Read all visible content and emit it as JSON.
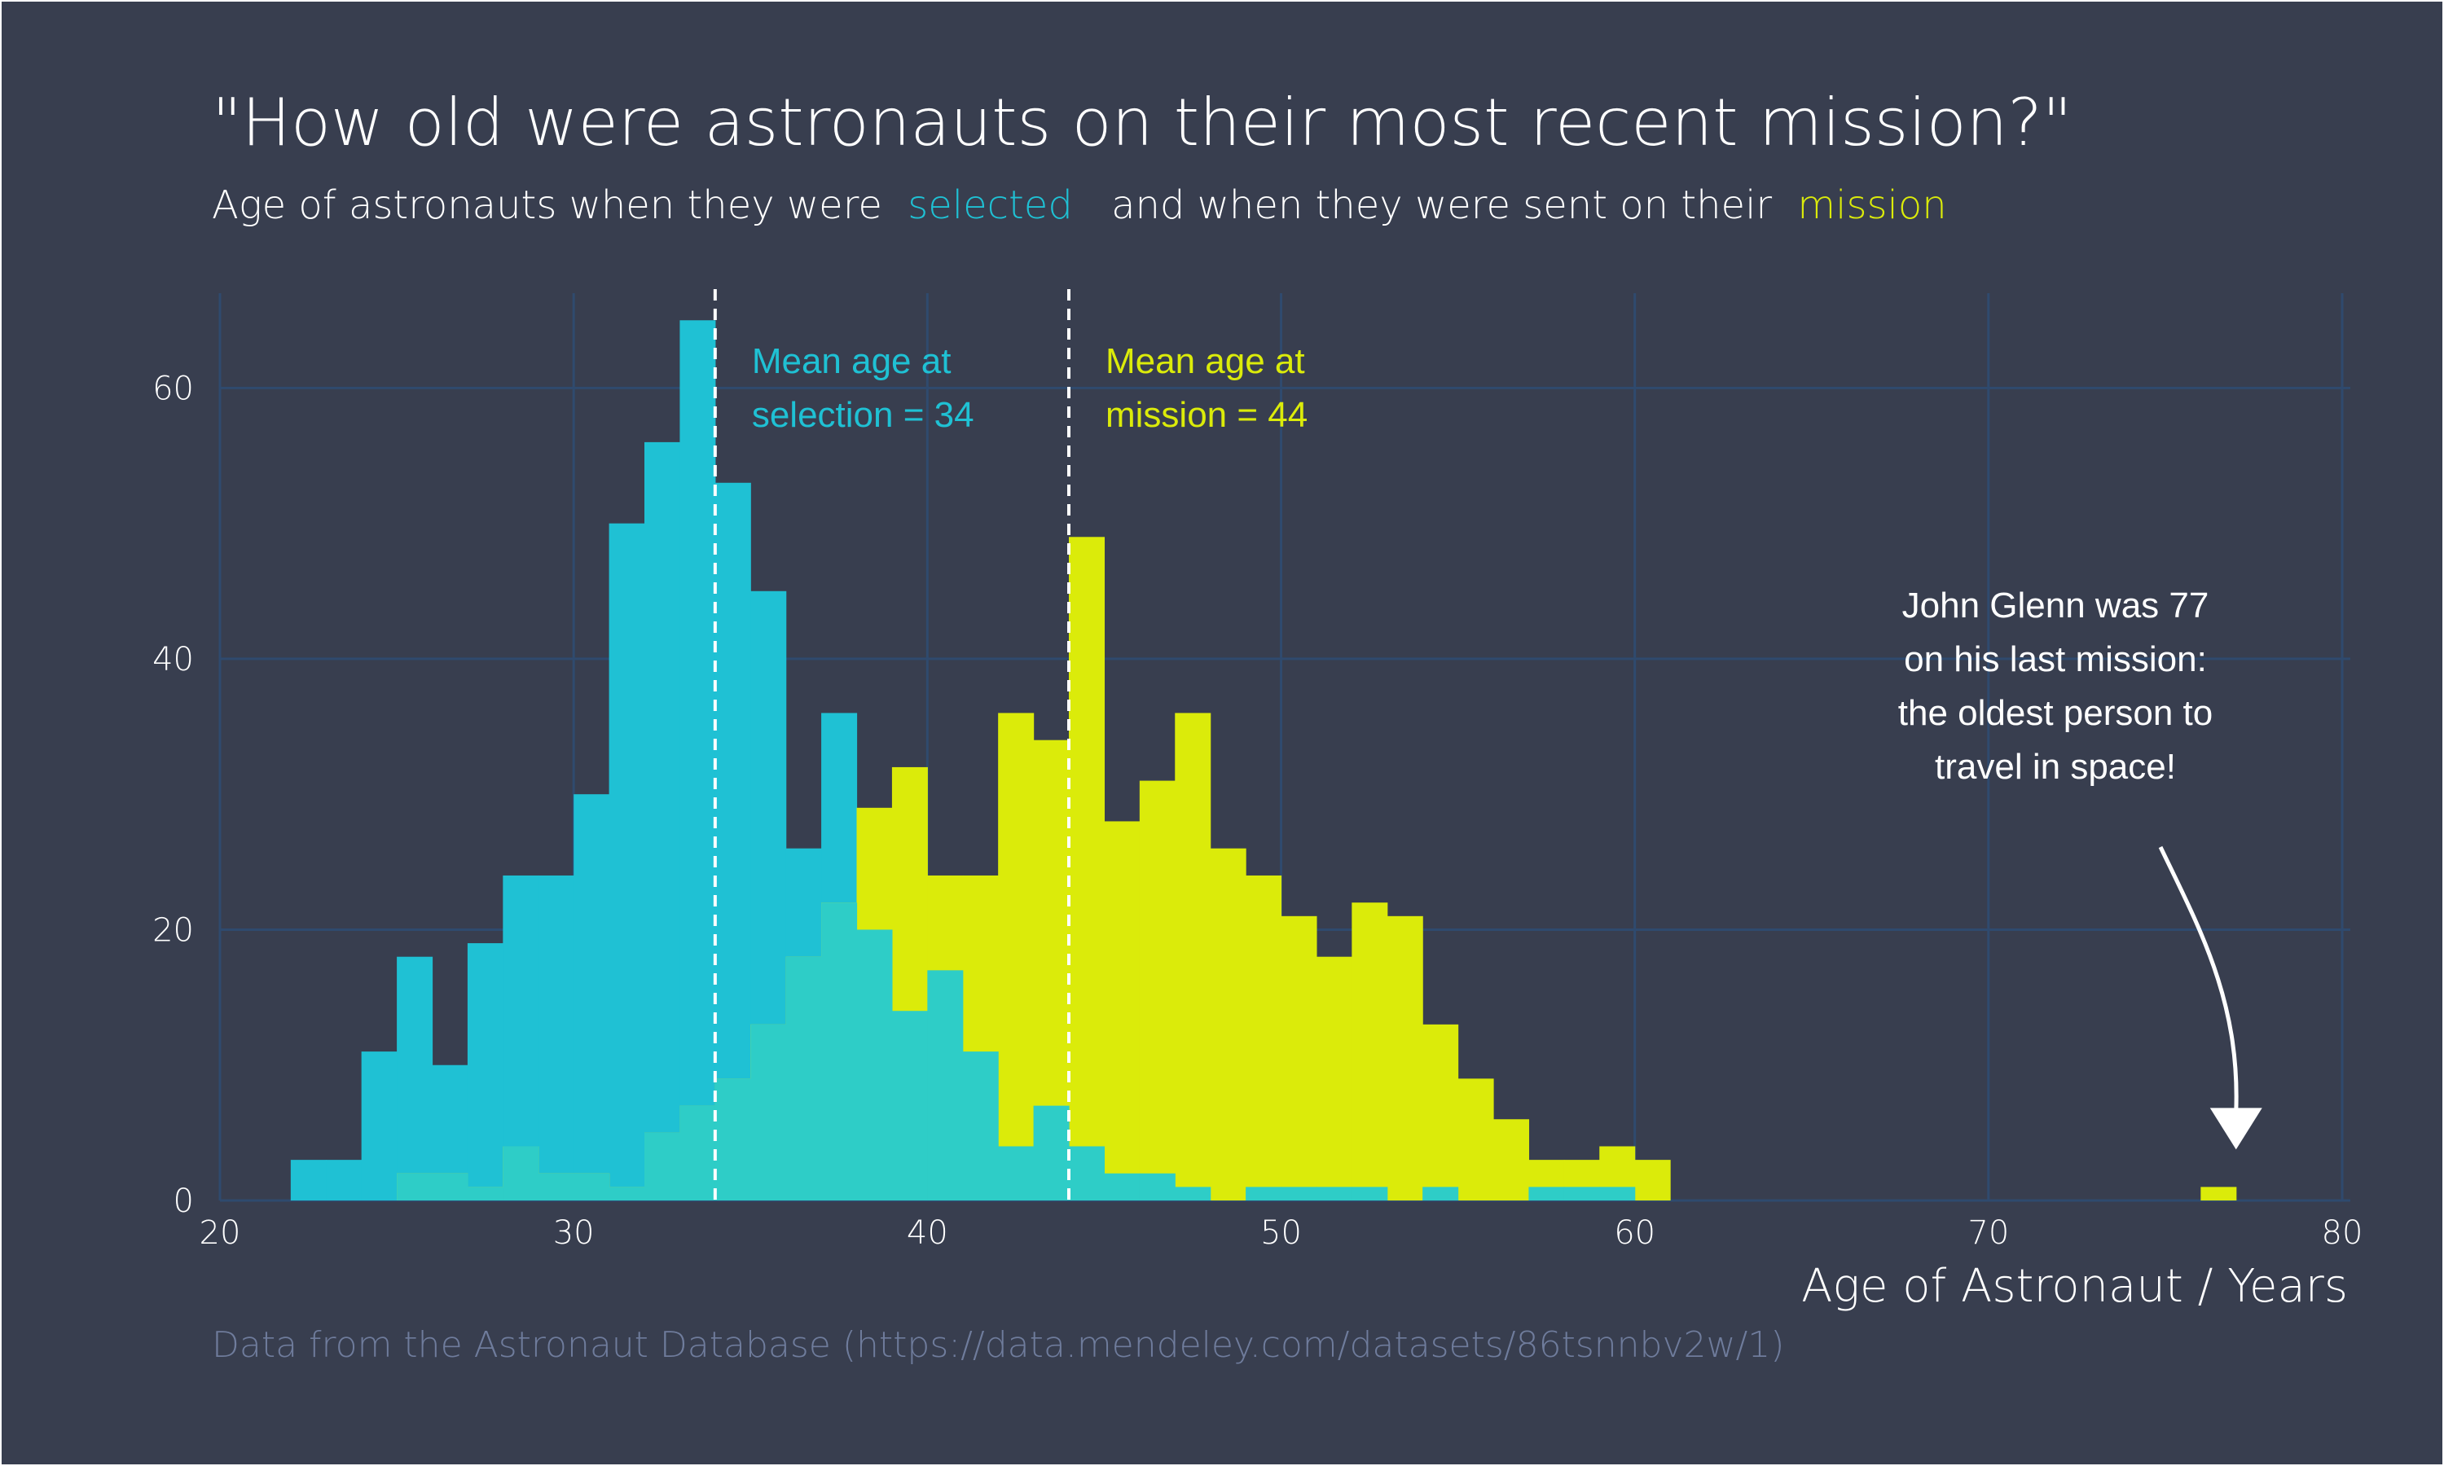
{
  "chart_data": {
    "type": "bar",
    "title": "\"How old were astronauts on their most recent mission?\"",
    "subtitle": {
      "part1": "Age of astronauts when they were",
      "highlight1": "selected",
      "part2": "and when they were sent on their",
      "highlight2": "mission"
    },
    "xlabel": "Age of Astronaut / Years",
    "ylabel": "",
    "xlim": [
      20,
      80
    ],
    "ylim": [
      0,
      67
    ],
    "x_ticks": [
      20,
      30,
      40,
      50,
      60,
      70,
      80
    ],
    "y_ticks": [
      0,
      20,
      40,
      60
    ],
    "grid": true,
    "bin_width": 1,
    "series": [
      {
        "name": "selected",
        "color": "#1fc1d4",
        "bins": [
          [
            22.5,
            3
          ],
          [
            23.5,
            3
          ],
          [
            24.5,
            11
          ],
          [
            25.5,
            18
          ],
          [
            26.5,
            10
          ],
          [
            27.5,
            19
          ],
          [
            28.5,
            24
          ],
          [
            29.5,
            24
          ],
          [
            30.5,
            30
          ],
          [
            31.5,
            50
          ],
          [
            32.5,
            56
          ],
          [
            33.5,
            65
          ],
          [
            34.5,
            53
          ],
          [
            35.5,
            45
          ],
          [
            36.5,
            26
          ],
          [
            37.5,
            36
          ],
          [
            38.5,
            20
          ],
          [
            39.5,
            14
          ],
          [
            40.5,
            17
          ],
          [
            41.5,
            11
          ],
          [
            42.5,
            4
          ],
          [
            43.5,
            7
          ],
          [
            44.5,
            4
          ],
          [
            45.5,
            2
          ],
          [
            46.5,
            2
          ],
          [
            47.5,
            1
          ],
          [
            49.5,
            1
          ],
          [
            50.5,
            1
          ],
          [
            51.5,
            1
          ],
          [
            52.5,
            1
          ],
          [
            54.5,
            1
          ],
          [
            57.5,
            1
          ],
          [
            58.5,
            1
          ],
          [
            59.5,
            1
          ]
        ]
      },
      {
        "name": "mission",
        "color": "#dbeb0a",
        "bins": [
          [
            25.5,
            2
          ],
          [
            26.5,
            2
          ],
          [
            27.5,
            1
          ],
          [
            28.5,
            4
          ],
          [
            29.5,
            2
          ],
          [
            30.5,
            2
          ],
          [
            31.5,
            1
          ],
          [
            32.5,
            5
          ],
          [
            33.5,
            7
          ],
          [
            34.5,
            9
          ],
          [
            35.5,
            13
          ],
          [
            36.5,
            18
          ],
          [
            37.5,
            22
          ],
          [
            38.5,
            29
          ],
          [
            39.5,
            32
          ],
          [
            40.5,
            24
          ],
          [
            41.5,
            24
          ],
          [
            42.5,
            36
          ],
          [
            43.5,
            34
          ],
          [
            44.5,
            49
          ],
          [
            45.5,
            28
          ],
          [
            46.5,
            31
          ],
          [
            47.5,
            36
          ],
          [
            48.5,
            26
          ],
          [
            49.5,
            24
          ],
          [
            50.5,
            21
          ],
          [
            51.5,
            18
          ],
          [
            52.5,
            22
          ],
          [
            53.5,
            21
          ],
          [
            54.5,
            13
          ],
          [
            55.5,
            9
          ],
          [
            56.5,
            6
          ],
          [
            57.5,
            3
          ],
          [
            58.5,
            3
          ],
          [
            59.5,
            4
          ],
          [
            60.5,
            3
          ],
          [
            76.5,
            1
          ]
        ]
      }
    ],
    "overlap_color": "#2ecdc7",
    "mean_lines": [
      {
        "series": "selected",
        "x": 34,
        "label_line1": "Mean age at",
        "label_line2": "selection = 34",
        "color": "#1fc1d4"
      },
      {
        "series": "mission",
        "x": 44,
        "label_line1": "Mean age at",
        "label_line2": "mission = 44",
        "color": "#dbeb0a"
      }
    ],
    "annotation": {
      "lines": [
        "John Glenn was 77",
        "on his last mission:",
        "the oldest person to",
        "travel in space!"
      ],
      "target_x": 77,
      "target_y": 1
    },
    "caption": "Data from the Astronaut Database (https://data.mendeley.com/datasets/86tsnnbv2w/1)"
  },
  "colors": {
    "background": "#383e4f",
    "grid": "#2f4a6e",
    "text": "#ffffff",
    "caption": "#6f7c9c"
  }
}
